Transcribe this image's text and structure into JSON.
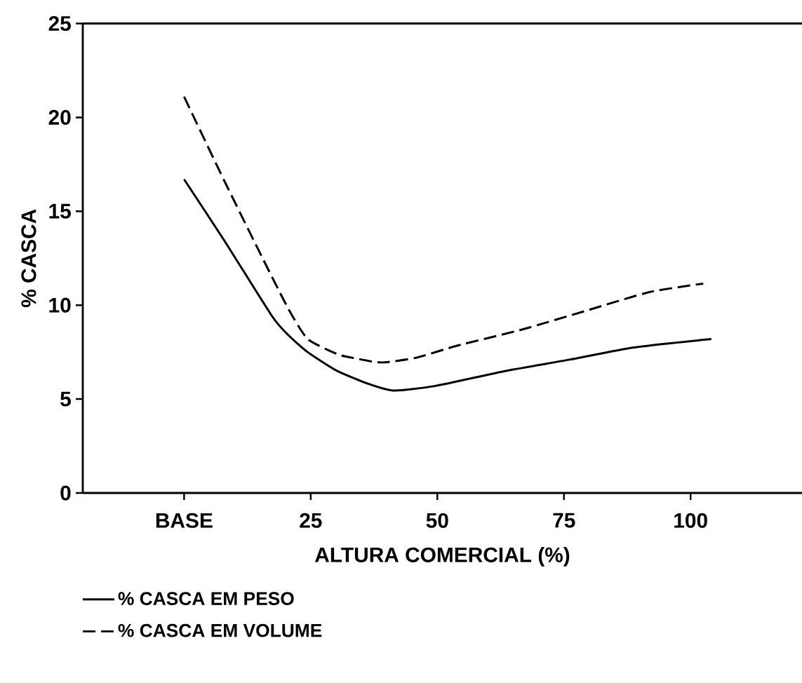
{
  "chart_data": {
    "type": "line",
    "xlabel": "ALTURA  COMERCIAL (%)",
    "ylabel": "% CASCA",
    "xlim": [
      -20,
      122
    ],
    "ylim": [
      0,
      25
    ],
    "xticks": [
      {
        "value": 0,
        "label": "BASE"
      },
      25,
      50,
      75,
      100
    ],
    "yticks": [
      0,
      5,
      10,
      15,
      20,
      25
    ],
    "grid": false,
    "legend": "bottom left",
    "marker": "none",
    "series": [
      {
        "name": "% CASCA EM PESO",
        "color": "#000000",
        "line_style": "solid",
        "x": [
          0,
          7.8,
          17.4,
          20.6,
          24.4,
          30.2,
          36.5,
          41.4,
          49.6,
          63.5,
          76.1,
          88.8,
          104.1
        ],
        "values": [
          16.7,
          13.5,
          9.4,
          8.4,
          7.5,
          6.5,
          5.8,
          5.45,
          5.7,
          6.5,
          7.1,
          7.75,
          8.2
        ]
      },
      {
        "name": "% CASCA EM VOLUME",
        "color": "#000000",
        "line_style": "dashed",
        "x": [
          0,
          7.8,
          15.5,
          20.6,
          24.4,
          30.2,
          33.2,
          38.9,
          45.8,
          54.0,
          66.7,
          79.3,
          91.9,
          102.5
        ],
        "values": [
          21.1,
          16.7,
          12.5,
          9.8,
          8.2,
          7.4,
          7.2,
          6.95,
          7.2,
          7.85,
          8.7,
          9.7,
          10.7,
          11.15
        ]
      }
    ]
  }
}
